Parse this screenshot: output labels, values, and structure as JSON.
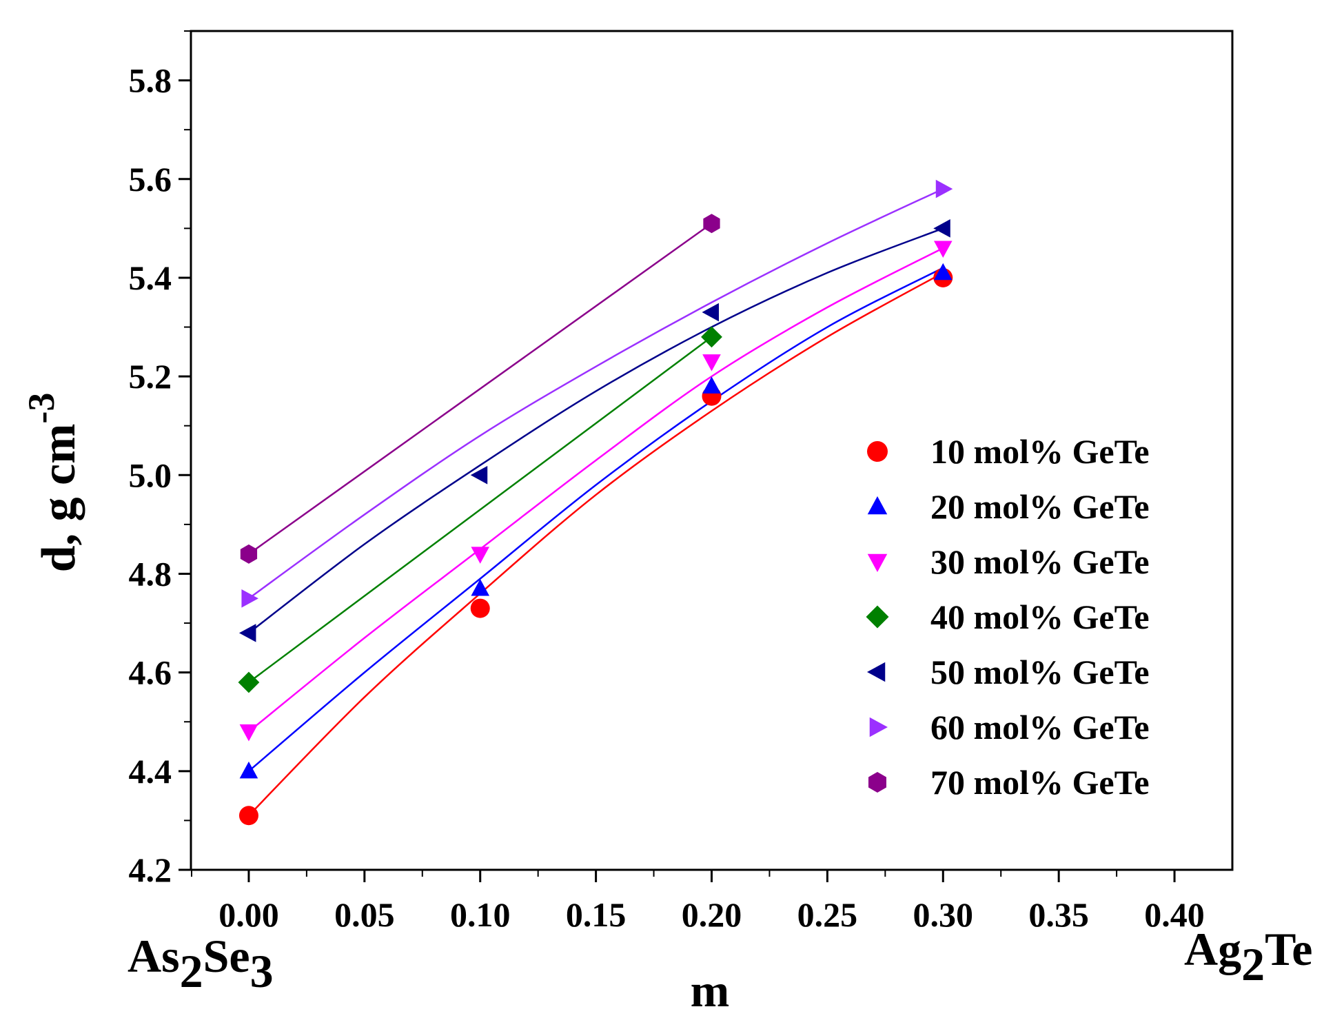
{
  "chart_data": {
    "type": "scatter",
    "title": "",
    "xlabel": "m",
    "ylabel": "d, g cm",
    "ylabel_superscript": "-3",
    "xlim": [
      -0.025,
      0.425
    ],
    "ylim": [
      4.2,
      5.9
    ],
    "xticks": [
      0.0,
      0.05,
      0.1,
      0.15,
      0.2,
      0.25,
      0.3,
      0.35,
      0.4
    ],
    "xtick_labels": [
      "0.00",
      "0.05",
      "0.10",
      "0.15",
      "0.20",
      "0.25",
      "0.30",
      "0.35",
      "0.40"
    ],
    "yticks": [
      4.2,
      4.4,
      4.6,
      4.8,
      5.0,
      5.2,
      5.4,
      5.6,
      5.8
    ],
    "ytick_labels": [
      "4.2",
      "4.4",
      "4.6",
      "4.8",
      "5.0",
      "5.2",
      "5.4",
      "5.6",
      "5.8"
    ],
    "x_left_end_label": {
      "base1": "As",
      "sub1": "2",
      "base2": "Se",
      "sub2": "3"
    },
    "x_right_end_label": {
      "base1": "Ag",
      "sub1": "2",
      "base2": "Te"
    },
    "grid": false,
    "legend_position": "right",
    "series": [
      {
        "name": "10 mol% GeTe",
        "color": "#ff0000",
        "marker": "circle",
        "x": [
          0.0,
          0.1,
          0.2,
          0.3
        ],
        "y": [
          4.31,
          4.73,
          5.16,
          5.4
        ],
        "fit_x": [
          0.0,
          0.05,
          0.1,
          0.15,
          0.2,
          0.25,
          0.3
        ],
        "fit_y": [
          4.31,
          4.55,
          4.76,
          4.96,
          5.13,
          5.28,
          5.41
        ]
      },
      {
        "name": "20 mol% GeTe",
        "color": "#0000ff",
        "marker": "triangle-up",
        "x": [
          0.0,
          0.1,
          0.2,
          0.3
        ],
        "y": [
          4.4,
          4.77,
          5.18,
          5.41
        ],
        "fit_x": [
          0.0,
          0.05,
          0.1,
          0.15,
          0.2,
          0.25,
          0.3
        ],
        "fit_y": [
          4.4,
          4.6,
          4.79,
          4.98,
          5.15,
          5.3,
          5.42
        ]
      },
      {
        "name": "30 mol% GeTe",
        "color": "#ff00ff",
        "marker": "triangle-down",
        "x": [
          0.0,
          0.1,
          0.2,
          0.3
        ],
        "y": [
          4.48,
          4.84,
          5.23,
          5.46
        ],
        "fit_x": [
          0.0,
          0.05,
          0.1,
          0.15,
          0.2,
          0.25,
          0.3
        ],
        "fit_y": [
          4.48,
          4.67,
          4.85,
          5.03,
          5.2,
          5.34,
          5.46
        ]
      },
      {
        "name": "40 mol% GeTe",
        "color": "#008000",
        "marker": "diamond",
        "x": [
          0.0,
          0.2
        ],
        "y": [
          4.58,
          5.28
        ],
        "fit_x": [
          0.0,
          0.2
        ],
        "fit_y": [
          4.58,
          5.28
        ]
      },
      {
        "name": "50 mol% GeTe",
        "color": "#00008b",
        "marker": "triangle-left",
        "x": [
          0.0,
          0.1,
          0.2,
          0.3
        ],
        "y": [
          4.68,
          5.0,
          5.33,
          5.5
        ],
        "fit_x": [
          0.0,
          0.05,
          0.1,
          0.15,
          0.2,
          0.25,
          0.3
        ],
        "fit_y": [
          4.68,
          4.86,
          5.02,
          5.17,
          5.3,
          5.41,
          5.5
        ]
      },
      {
        "name": "60 mol% GeTe",
        "color": "#9b30ff",
        "marker": "triangle-right",
        "x": [
          0.0,
          0.3
        ],
        "y": [
          4.75,
          5.58
        ],
        "fit_x": [
          0.0,
          0.05,
          0.1,
          0.15,
          0.2,
          0.25,
          0.3
        ],
        "fit_y": [
          4.75,
          4.92,
          5.08,
          5.22,
          5.35,
          5.47,
          5.58
        ]
      },
      {
        "name": "70 mol% GeTe",
        "color": "#8b008b",
        "marker": "hexagon",
        "x": [
          0.0,
          0.2
        ],
        "y": [
          4.84,
          5.51
        ],
        "fit_x": [
          0.0,
          0.2
        ],
        "fit_y": [
          4.84,
          5.51
        ]
      }
    ]
  }
}
